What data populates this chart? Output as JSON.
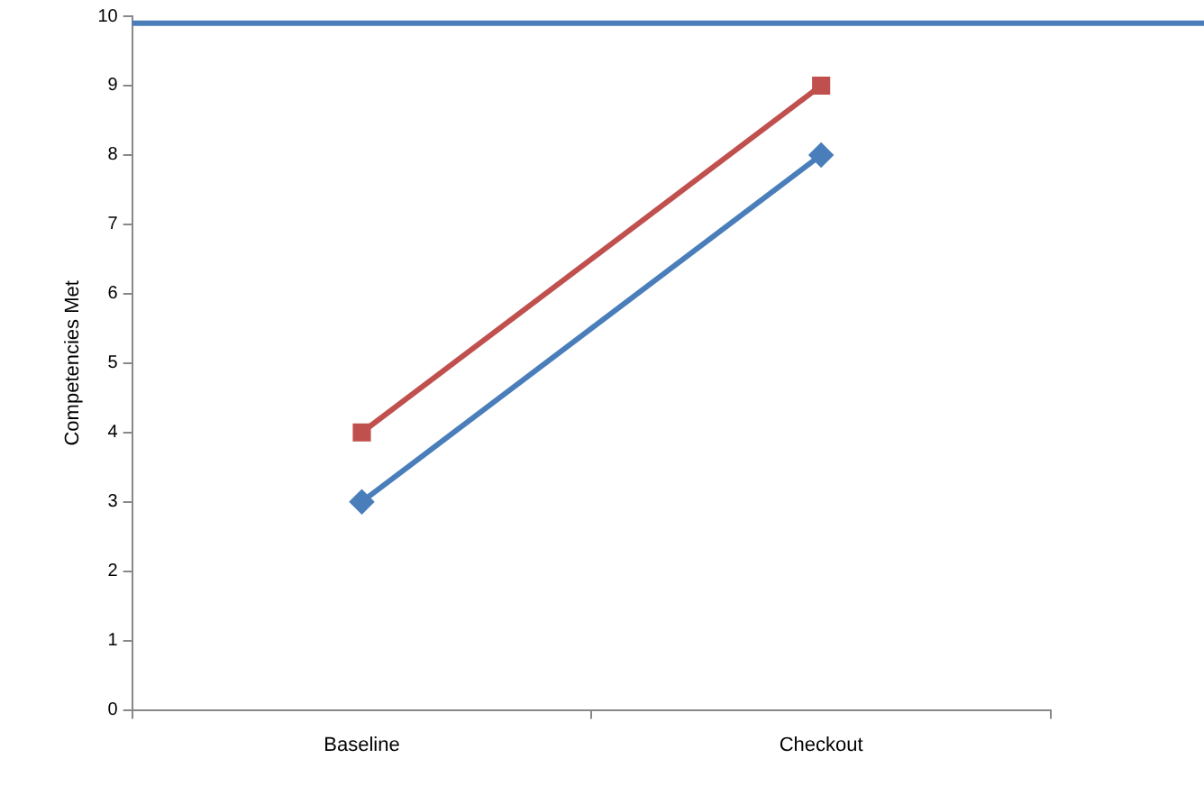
{
  "chart_data": {
    "type": "line",
    "ylabel": "Competencies Met",
    "categories": [
      "Baseline",
      "Checkout"
    ],
    "series": [
      {
        "color": "#4a7ebb",
        "values": [
          3,
          8
        ],
        "marker": "diamond"
      },
      {
        "color": "#c0504d",
        "values": [
          4,
          9
        ],
        "marker": "square"
      }
    ],
    "ylim": [
      0,
      10
    ],
    "yticks": [
      0,
      1,
      2,
      3,
      4,
      5,
      6,
      7,
      8,
      9,
      10
    ],
    "grid": false,
    "legend": false,
    "ref_lines": [
      {
        "axis": "y",
        "value": 9.9,
        "color": "#4a7ebb"
      }
    ]
  }
}
